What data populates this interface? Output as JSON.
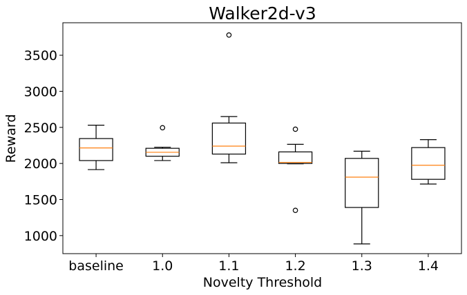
{
  "chart_data": {
    "type": "box",
    "title": "Walker2d-v3",
    "xlabel": "Novelty Threshold",
    "ylabel": "Reward",
    "categories": [
      "baseline",
      "1.0",
      "1.1",
      "1.2",
      "1.3",
      "1.4"
    ],
    "yticks": [
      "1000",
      "1500",
      "2000",
      "2500",
      "3000",
      "3500"
    ],
    "ylim": [
      750,
      3950
    ],
    "grid": false,
    "boxes": [
      {
        "label": "baseline",
        "whisker_low": 1915,
        "q1": 2040,
        "median": 2215,
        "q3": 2345,
        "whisker_high": 2530,
        "outliers": []
      },
      {
        "label": "1.0",
        "whisker_low": 2040,
        "q1": 2100,
        "median": 2155,
        "q3": 2210,
        "whisker_high": 2225,
        "outliers": [
          2495
        ]
      },
      {
        "label": "1.1",
        "whisker_low": 2010,
        "q1": 2130,
        "median": 2240,
        "q3": 2560,
        "whisker_high": 2650,
        "outliers": [
          3780
        ]
      },
      {
        "label": "1.2",
        "whisker_low": 1995,
        "q1": 2000,
        "median": 2015,
        "q3": 2160,
        "whisker_high": 2265,
        "outliers": [
          2475,
          1350
        ]
      },
      {
        "label": "1.3",
        "whisker_low": 885,
        "q1": 1390,
        "median": 1810,
        "q3": 2070,
        "whisker_high": 2170,
        "outliers": []
      },
      {
        "label": "1.4",
        "whisker_low": 1715,
        "q1": 1780,
        "median": 1975,
        "q3": 2220,
        "whisker_high": 2330,
        "outliers": []
      }
    ],
    "colors": {
      "box": "#000000",
      "median": "#ff7f0e",
      "background": "#ffffff"
    }
  }
}
